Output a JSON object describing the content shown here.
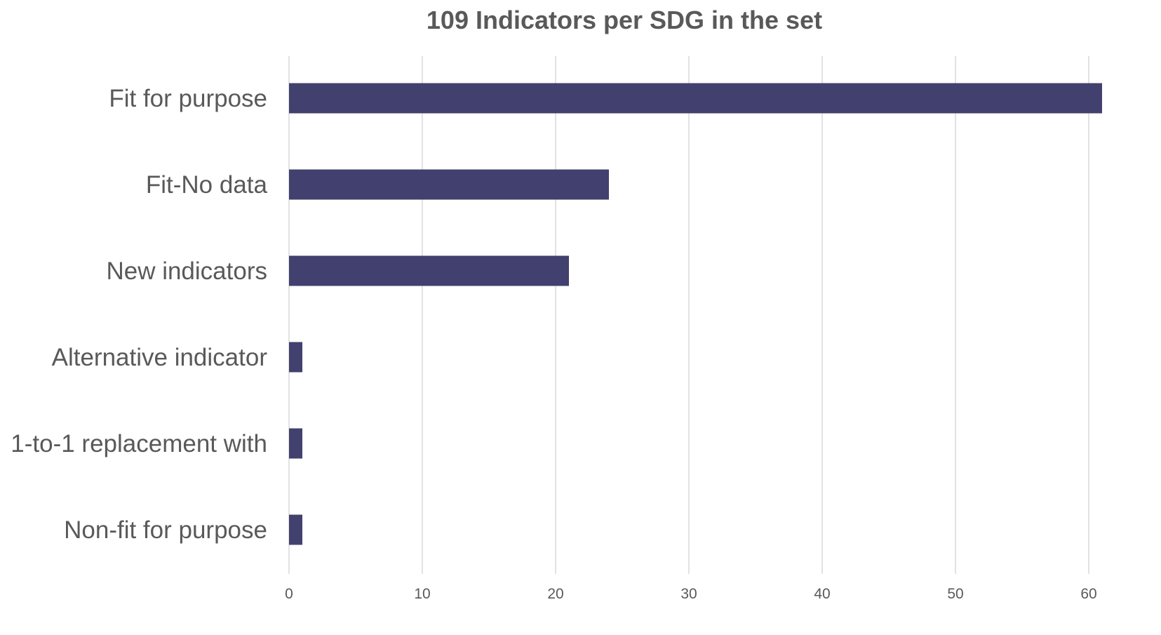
{
  "chart_data": {
    "type": "bar",
    "orientation": "horizontal",
    "title": "109 Indicators per SDG in the set",
    "xlabel": "",
    "ylabel": "",
    "categories": [
      "Fit for purpose",
      "Fit-No data",
      "New indicators",
      "Alternative indicator",
      "1-to-1 replacement with",
      "Non-fit for purpose"
    ],
    "values": [
      61,
      24,
      21,
      1,
      1,
      1
    ],
    "xlim": [
      0,
      60
    ],
    "ticks": [
      0,
      10,
      20,
      30,
      40,
      50,
      60
    ],
    "grid": "vertical",
    "legend": "none",
    "colors": {
      "bar": "#41406e",
      "grid": "#d9d9d9",
      "text": "#595959"
    }
  }
}
